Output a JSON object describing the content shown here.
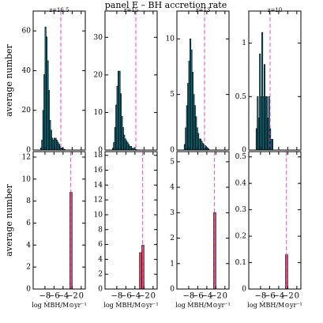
{
  "title": "panel E – BH accretion rate",
  "chart_data": [
    {
      "type": "histogram",
      "title": "z=16.5",
      "ylabel": "average number",
      "bins": [
        -9.0,
        -8.75,
        -8.5,
        -8.25,
        -8.0,
        -7.75,
        -7.5,
        -7.25,
        -7.0,
        -6.75,
        -6.5,
        -6.25,
        -6.0,
        -5.75,
        -5.5,
        -5.25,
        -5.0,
        -4.75,
        -4.5,
        -4.25,
        -4.0,
        -3.75,
        -3.5
      ],
      "values": [
        1,
        5,
        20,
        38,
        62,
        57,
        45,
        30,
        15,
        10,
        6,
        5,
        6,
        6,
        5,
        4,
        3,
        2,
        1,
        1,
        0.5,
        0.3
      ],
      "color": "#17798a",
      "vline": -4.5,
      "vline_color": "#e645e6",
      "xlim": [
        -10.6,
        0.9
      ],
      "ylim": [
        0,
        70
      ],
      "xticks": [
        {
          "value": -8,
          "label": "−8"
        },
        {
          "value": -6,
          "label": "−6"
        },
        {
          "value": -4,
          "label": "−4"
        },
        {
          "value": -2,
          "label": "−2"
        },
        0
      ],
      "yticks": [
        0,
        20,
        40,
        60
      ]
    },
    {
      "type": "histogram",
      "title": "z=15",
      "bins": [
        -9.0,
        -8.75,
        -8.5,
        -8.25,
        -8.0,
        -7.75,
        -7.5,
        -7.25,
        -7.0,
        -6.75,
        -6.5,
        -6.25,
        -6.0,
        -5.75,
        -5.5,
        -5.25,
        -5.0,
        -4.75,
        -4.5,
        -4.25,
        -4.0,
        -3.75,
        -3.5
      ],
      "values": [
        0.5,
        2,
        6,
        12,
        17,
        21,
        21,
        15,
        9,
        6,
        4,
        3,
        2.5,
        2,
        1.5,
        1,
        1,
        0.5,
        0.5,
        0.3,
        0.2,
        0.1
      ],
      "color": "#17798a",
      "vline": -3.8,
      "vline_color": "#e645e6",
      "xlim": [
        -10.6,
        0.9
      ],
      "ylim": [
        0,
        37
      ],
      "xticks": [
        {
          "value": -8,
          "label": "−8"
        },
        {
          "value": -6,
          "label": "−6"
        },
        {
          "value": -4,
          "label": "−4"
        },
        {
          "value": -2,
          "label": "−2"
        },
        0
      ],
      "yticks": [
        0,
        10,
        20,
        30
      ]
    },
    {
      "type": "histogram",
      "title": "z=13",
      "bins": [
        -9.0,
        -8.75,
        -8.5,
        -8.25,
        -8.0,
        -7.75,
        -7.5,
        -7.25,
        -7.0,
        -6.75,
        -6.5,
        -6.25,
        -6.0,
        -5.75,
        -5.5,
        -5.25,
        -5.0,
        -4.75,
        -4.5,
        -4.25,
        -4.0,
        -3.75,
        -3.5
      ],
      "values": [
        0.5,
        2,
        4,
        6,
        8,
        10,
        9,
        7,
        5,
        4,
        3,
        2,
        1.5,
        1,
        1,
        0.8,
        0.6,
        0.5,
        0.4,
        0.3,
        0.2,
        0.1
      ],
      "color": "#17798a",
      "vline": -4.5,
      "vline_color": "#e645e6",
      "xlim": [
        -10.6,
        0.9
      ],
      "ylim": [
        0,
        12.5
      ],
      "xticks": [
        {
          "value": -8,
          "label": "−8"
        },
        {
          "value": -6,
          "label": "−6"
        },
        {
          "value": -4,
          "label": "−4"
        },
        {
          "value": -2,
          "label": "−2"
        },
        0
      ],
      "yticks": [
        0,
        5,
        10
      ]
    },
    {
      "type": "histogram",
      "title": "z=10",
      "bins": [
        -9.0,
        -8.75,
        -8.5,
        -8.25,
        -8.0,
        -7.75,
        -7.5,
        -7.25,
        -7.0,
        -6.75,
        -6.5,
        -6.25,
        -6.0,
        -5.75,
        -5.5,
        -5.25,
        -5.0,
        -4.75,
        -4.5,
        -4.25,
        -4.0,
        -3.75,
        -3.5
      ],
      "values": [
        0.2,
        0.5,
        0.3,
        0.9,
        0.5,
        1.1,
        0.5,
        0.8,
        0.5,
        0.5,
        0.3,
        0.5,
        0.2,
        0.1,
        0.1,
        0,
        0,
        0,
        0,
        0,
        0,
        0
      ],
      "color": "#17798a",
      "vline": -5.9,
      "vline_color": "#e645e6",
      "xlim": [
        -10.6,
        0.9
      ],
      "ylim": [
        0,
        1.3
      ],
      "xticks": [
        {
          "value": -8,
          "label": "−8"
        },
        {
          "value": -6,
          "label": "−6"
        },
        {
          "value": -4,
          "label": "−4"
        },
        {
          "value": -2,
          "label": "−2"
        },
        0
      ],
      "yticks": [
        0,
        0.5,
        1
      ]
    },
    {
      "type": "histogram",
      "ylabel": "average number",
      "xlabel": "log ṀBH/M⊙yr⁻¹",
      "bins": [
        -3.0,
        -2.5,
        -2.0
      ],
      "values": [
        0,
        8.8
      ],
      "color": "#e0405a",
      "vline": -2.3,
      "vline_color": "#e645e6",
      "xlim": [
        -10.6,
        0.9
      ],
      "ylim": [
        0,
        12.5
      ],
      "xticks": [
        {
          "value": -8,
          "label": "−8"
        },
        {
          "value": -6,
          "label": "−6"
        },
        {
          "value": -4,
          "label": "−4"
        },
        {
          "value": -2,
          "label": "−2"
        },
        0
      ],
      "yticks": [
        0,
        2,
        4,
        6,
        8,
        10,
        12
      ]
    },
    {
      "type": "histogram",
      "xlabel": "log ṀBH/M⊙yr⁻¹",
      "bins": [
        -3.0,
        -2.5,
        -2.0
      ],
      "values": [
        4.9,
        5.9
      ],
      "color": "#e0405a",
      "vline": -2.3,
      "vline_color": "#e645e6",
      "xlim": [
        -10.6,
        0.9
      ],
      "ylim": [
        0,
        18.5
      ],
      "xticks": [
        {
          "value": -8,
          "label": "−8"
        },
        {
          "value": -6,
          "label": "−6"
        },
        {
          "value": -4,
          "label": "−4"
        },
        {
          "value": -2,
          "label": "−2"
        },
        0
      ],
      "yticks": [
        0,
        2,
        4,
        6,
        8,
        10,
        12,
        14,
        16,
        18
      ]
    },
    {
      "type": "histogram",
      "xlabel": "log ṀBH/M⊙yr⁻¹",
      "bins": [
        -3.0,
        -2.5,
        -2.0
      ],
      "values": [
        0,
        3.0
      ],
      "color": "#e0405a",
      "vline": -2.3,
      "vline_color": "#e645e6",
      "xlim": [
        -10.6,
        0.9
      ],
      "ylim": [
        0,
        5.4
      ],
      "xticks": [
        {
          "value": -8,
          "label": "−8"
        },
        {
          "value": -6,
          "label": "−6"
        },
        {
          "value": -4,
          "label": "−4"
        },
        {
          "value": -2,
          "label": "−2"
        },
        0
      ],
      "yticks": [
        0,
        1,
        2,
        3,
        4,
        5
      ]
    },
    {
      "type": "histogram",
      "xlabel": "log ṀBH/M⊙yr⁻¹",
      "bins": [
        -3.0,
        -2.5,
        -2.0
      ],
      "values": [
        0,
        0.13
      ],
      "color": "#e0405a",
      "vline": -2.3,
      "vline_color": "#e645e6",
      "xlim": [
        -10.6,
        0.9
      ],
      "ylim": [
        0,
        0.52
      ],
      "xticks": [
        {
          "value": -8,
          "label": "−8"
        },
        {
          "value": -6,
          "label": "−6"
        },
        {
          "value": -4,
          "label": "−4"
        },
        {
          "value": -2,
          "label": "−2"
        },
        0
      ],
      "yticks": [
        0,
        0.1,
        0.2,
        0.3,
        0.4,
        0.5
      ]
    }
  ]
}
